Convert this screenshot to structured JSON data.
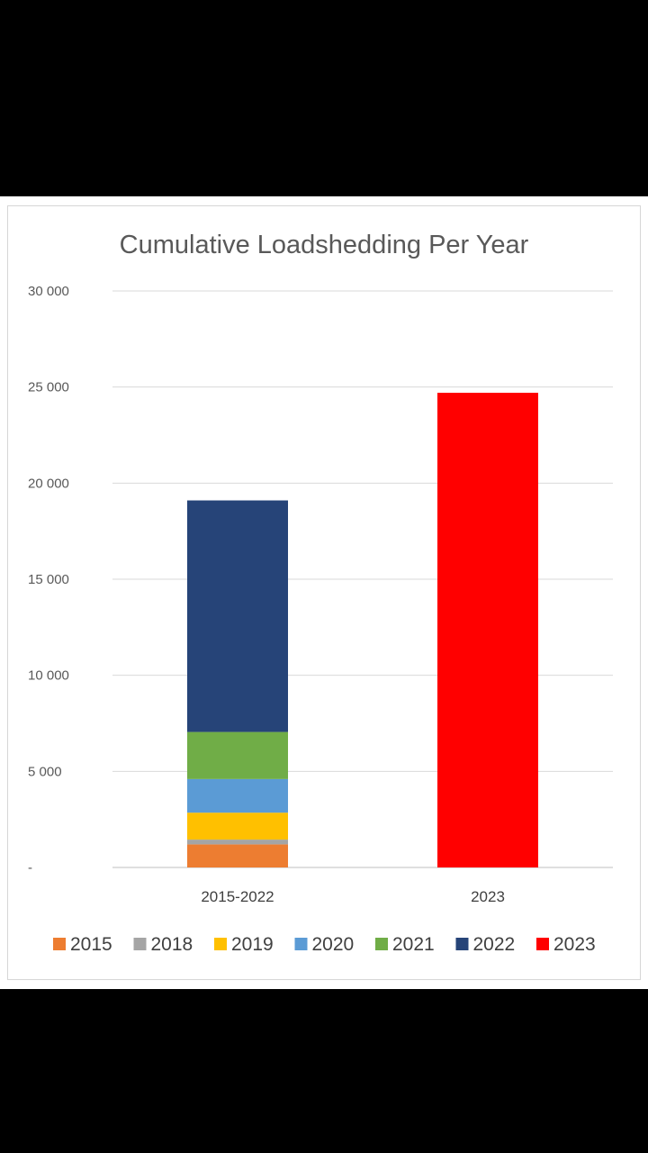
{
  "chart_data": {
    "type": "bar",
    "stacked": true,
    "title": "Cumulative Loadshedding Per Year",
    "categories": [
      "2015-2022",
      "2023"
    ],
    "ylim": [
      0,
      30000
    ],
    "yticks": [
      0,
      5000,
      10000,
      15000,
      20000,
      25000,
      30000
    ],
    "ytick_labels": [
      "-",
      "5 000",
      "10 000",
      "15 000",
      "20 000",
      "25 000",
      "30 000"
    ],
    "grid": true,
    "legend_position": "bottom",
    "series": [
      {
        "name": "2015",
        "color": "#ED7D31",
        "values": [
          1200,
          0
        ]
      },
      {
        "name": "2018",
        "color": "#A5A5A5",
        "values": [
          250,
          0
        ]
      },
      {
        "name": "2019",
        "color": "#FFC000",
        "values": [
          1400,
          0
        ]
      },
      {
        "name": "2020",
        "color": "#5B9BD5",
        "values": [
          1750,
          0
        ]
      },
      {
        "name": "2021",
        "color": "#70AD47",
        "values": [
          2450,
          0
        ]
      },
      {
        "name": "2022",
        "color": "#264478",
        "values": [
          12050,
          0
        ]
      },
      {
        "name": "2023",
        "color": "#FF0000",
        "values": [
          0,
          24700
        ]
      }
    ]
  }
}
